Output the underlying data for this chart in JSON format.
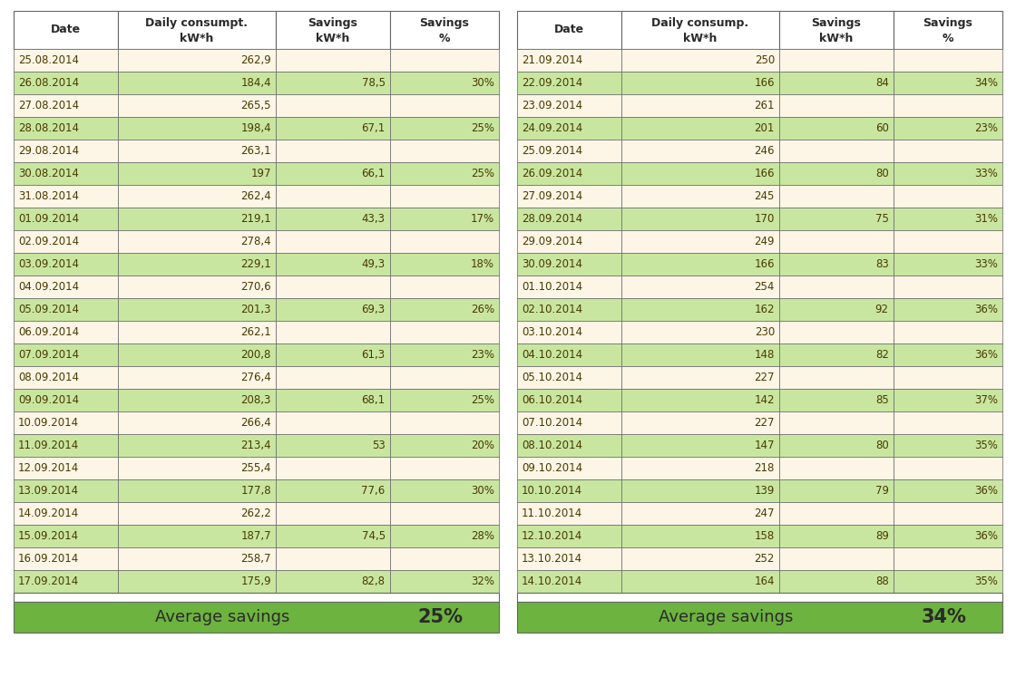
{
  "table1": {
    "col_header1": "Date",
    "col_header2": "Daily consumpt.\nkW*h",
    "col_header3": "Savings\nkW*h",
    "col_header4": "Savings\n%",
    "rows": [
      [
        "25.08.2014",
        "262,9",
        "",
        ""
      ],
      [
        "26.08.2014",
        "184,4",
        "78,5",
        "30%"
      ],
      [
        "27.08.2014",
        "265,5",
        "",
        ""
      ],
      [
        "28.08.2014",
        "198,4",
        "67,1",
        "25%"
      ],
      [
        "29.08.2014",
        "263,1",
        "",
        ""
      ],
      [
        "30.08.2014",
        "197",
        "66,1",
        "25%"
      ],
      [
        "31.08.2014",
        "262,4",
        "",
        ""
      ],
      [
        "01.09.2014",
        "219,1",
        "43,3",
        "17%"
      ],
      [
        "02.09.2014",
        "278,4",
        "",
        ""
      ],
      [
        "03.09.2014",
        "229,1",
        "49,3",
        "18%"
      ],
      [
        "04.09.2014",
        "270,6",
        "",
        ""
      ],
      [
        "05.09.2014",
        "201,3",
        "69,3",
        "26%"
      ],
      [
        "06.09.2014",
        "262,1",
        "",
        ""
      ],
      [
        "07.09.2014",
        "200,8",
        "61,3",
        "23%"
      ],
      [
        "08.09.2014",
        "276,4",
        "",
        ""
      ],
      [
        "09.09.2014",
        "208,3",
        "68,1",
        "25%"
      ],
      [
        "10.09.2014",
        "266,4",
        "",
        ""
      ],
      [
        "11.09.2014",
        "213,4",
        "53",
        "20%"
      ],
      [
        "12.09.2014",
        "255,4",
        "",
        ""
      ],
      [
        "13.09.2014",
        "177,8",
        "77,6",
        "30%"
      ],
      [
        "14.09.2014",
        "262,2",
        "",
        ""
      ],
      [
        "15.09.2014",
        "187,7",
        "74,5",
        "28%"
      ],
      [
        "16.09.2014",
        "258,7",
        "",
        ""
      ],
      [
        "17.09.2014",
        "175,9",
        "82,8",
        "32%"
      ]
    ],
    "average": "25%"
  },
  "table2": {
    "col_header1": "Date",
    "col_header2": "Daily consump.\nkW*h",
    "col_header3": "Savings\nkW*h",
    "col_header4": "Savings\n%",
    "rows": [
      [
        "21.09.2014",
        "250",
        "",
        ""
      ],
      [
        "22.09.2014",
        "166",
        "84",
        "34%"
      ],
      [
        "23.09.2014",
        "261",
        "",
        ""
      ],
      [
        "24.09.2014",
        "201",
        "60",
        "23%"
      ],
      [
        "25.09.2014",
        "246",
        "",
        ""
      ],
      [
        "26.09.2014",
        "166",
        "80",
        "33%"
      ],
      [
        "27.09.2014",
        "245",
        "",
        ""
      ],
      [
        "28.09.2014",
        "170",
        "75",
        "31%"
      ],
      [
        "29.09.2014",
        "249",
        "",
        ""
      ],
      [
        "30.09.2014",
        "166",
        "83",
        "33%"
      ],
      [
        "01.10.2014",
        "254",
        "",
        ""
      ],
      [
        "02.10.2014",
        "162",
        "92",
        "36%"
      ],
      [
        "03.10.2014",
        "230",
        "",
        ""
      ],
      [
        "04.10.2014",
        "148",
        "82",
        "36%"
      ],
      [
        "05.10.2014",
        "227",
        "",
        ""
      ],
      [
        "06.10.2014",
        "142",
        "85",
        "37%"
      ],
      [
        "07.10.2014",
        "227",
        "",
        ""
      ],
      [
        "08.10.2014",
        "147",
        "80",
        "35%"
      ],
      [
        "09.10.2014",
        "218",
        "",
        ""
      ],
      [
        "10.10.2014",
        "139",
        "79",
        "36%"
      ],
      [
        "11.10.2014",
        "247",
        "",
        ""
      ],
      [
        "12.10.2014",
        "158",
        "89",
        "36%"
      ],
      [
        "13.10.2014",
        "252",
        "",
        ""
      ],
      [
        "14.10.2014",
        "164",
        "88",
        "35%"
      ]
    ],
    "average": "34%"
  },
  "green_color": "#6db33f",
  "light_green": "#c8e6a0",
  "cream_color": "#fdf5e6",
  "white_color": "#ffffff",
  "border_color": "#666666",
  "text_color": "#4a3a00",
  "header_text_color": "#2a2a2a",
  "avg_text_color": "#2a2a2a"
}
